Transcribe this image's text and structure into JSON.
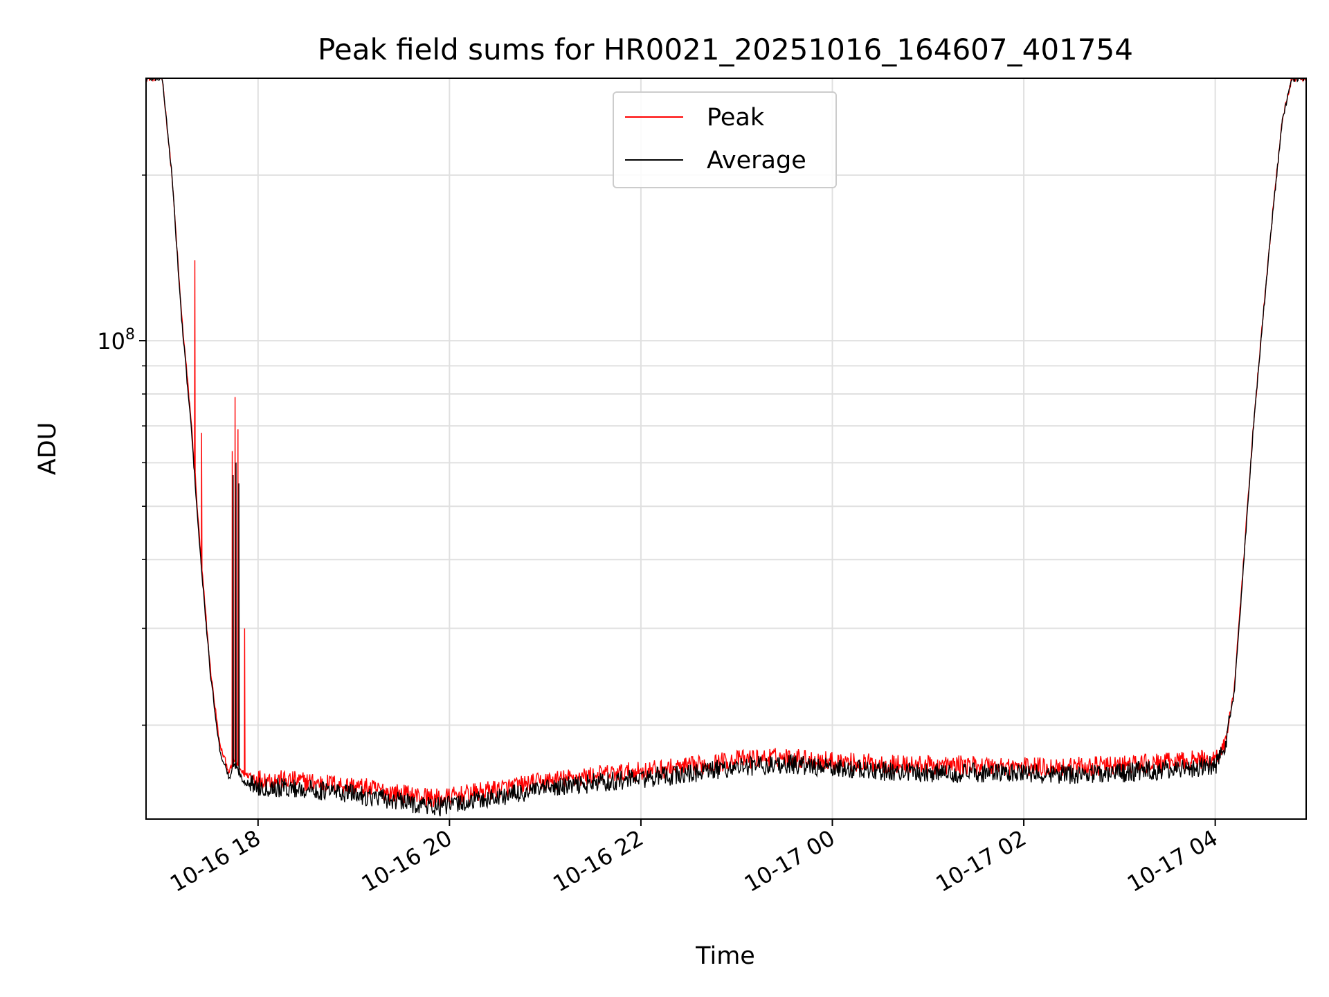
{
  "chart_data": {
    "type": "line",
    "title": "Peak field sums for HR0021_20251016_164607_401754",
    "xlabel": "Time",
    "ylabel": "ADU",
    "yscale": "log",
    "ylim": [
      13500000,
      300000000
    ],
    "xlim_hours": [
      16.83,
      28.95
    ],
    "grid": true,
    "legend": {
      "position": "top-center",
      "entries": [
        "Peak",
        "Average"
      ]
    },
    "colors": {
      "Peak": "#ff0000",
      "Average": "#000000",
      "grid": "#e0e0e0"
    },
    "x_ticks": [
      {
        "hour": 18,
        "label": "10-16 18"
      },
      {
        "hour": 20,
        "label": "10-16 20"
      },
      {
        "hour": 22,
        "label": "10-16 22"
      },
      {
        "hour": 24,
        "label": "10-17 00"
      },
      {
        "hour": 26,
        "label": "10-17 02"
      },
      {
        "hour": 28,
        "label": "10-17 04"
      }
    ],
    "y_major_tick": {
      "value": 100000000,
      "base": "10",
      "exponent": "8"
    },
    "y_minor_ticks": [
      20000000,
      30000000,
      40000000,
      50000000,
      60000000,
      70000000,
      80000000,
      90000000,
      200000000
    ],
    "series": [
      {
        "name": "Average",
        "x": [
          16.83,
          17.0,
          17.1,
          17.2,
          17.3,
          17.4,
          17.5,
          17.6,
          17.7,
          17.75,
          17.85,
          18.0,
          18.5,
          19.0,
          19.5,
          19.9,
          20.5,
          21.0,
          21.5,
          22.0,
          22.5,
          23.0,
          23.5,
          24.0,
          24.5,
          25.0,
          25.5,
          26.0,
          26.5,
          27.0,
          27.5,
          28.0,
          28.1,
          28.2,
          28.3,
          28.4,
          28.5,
          28.6,
          28.7,
          28.8,
          28.95
        ],
        "values": [
          300000000,
          300000000,
          200000000,
          110000000,
          70000000,
          40000000,
          25000000,
          18000000,
          16000000,
          17000000,
          15800000,
          15500000,
          15300000,
          15000000,
          14500000,
          14200000,
          14800000,
          15300000,
          15700000,
          16000000,
          16300000,
          16800000,
          17000000,
          16700000,
          16500000,
          16400000,
          16400000,
          16300000,
          16300000,
          16400000,
          16600000,
          16900000,
          18000000,
          23000000,
          40000000,
          70000000,
          110000000,
          170000000,
          250000000,
          300000000,
          300000000
        ]
      },
      {
        "name": "Peak",
        "x": [
          16.83,
          17.0,
          17.1,
          17.2,
          17.3,
          17.4,
          17.5,
          17.6,
          17.7,
          17.75,
          17.85,
          18.0,
          18.5,
          19.0,
          19.5,
          19.9,
          20.5,
          21.0,
          21.5,
          22.0,
          22.5,
          23.0,
          23.5,
          24.0,
          24.5,
          25.0,
          25.5,
          26.0,
          26.5,
          27.0,
          27.5,
          28.0,
          28.1,
          28.2,
          28.3,
          28.4,
          28.5,
          28.6,
          28.7,
          28.8,
          28.95
        ],
        "values": [
          300000000,
          300000000,
          200000000,
          112000000,
          72000000,
          41000000,
          25500000,
          18400000,
          16400000,
          17300000,
          16300000,
          16000000,
          15800000,
          15500000,
          15000000,
          14700000,
          15300000,
          15800000,
          16200000,
          16500000,
          16800000,
          17300000,
          17500000,
          17200000,
          17000000,
          16900000,
          16900000,
          16800000,
          16800000,
          16900000,
          17100000,
          17400000,
          18400000,
          23400000,
          40500000,
          70500000,
          111000000,
          171000000,
          251000000,
          300000000,
          300000000
        ]
      }
    ],
    "spikes": [
      {
        "series": "Peak",
        "hour": 17.34,
        "value": 140000000
      },
      {
        "series": "Peak",
        "hour": 17.41,
        "value": 68000000
      },
      {
        "series": "Peak",
        "hour": 17.73,
        "value": 63000000
      },
      {
        "series": "Peak",
        "hour": 17.76,
        "value": 79000000
      },
      {
        "series": "Peak",
        "hour": 17.79,
        "value": 69000000
      },
      {
        "series": "Peak",
        "hour": 17.86,
        "value": 30000000
      },
      {
        "series": "Average",
        "hour": 17.74,
        "value": 57000000
      },
      {
        "series": "Average",
        "hour": 17.77,
        "value": 60000000
      },
      {
        "series": "Average",
        "hour": 17.8,
        "value": 55000000
      }
    ]
  }
}
